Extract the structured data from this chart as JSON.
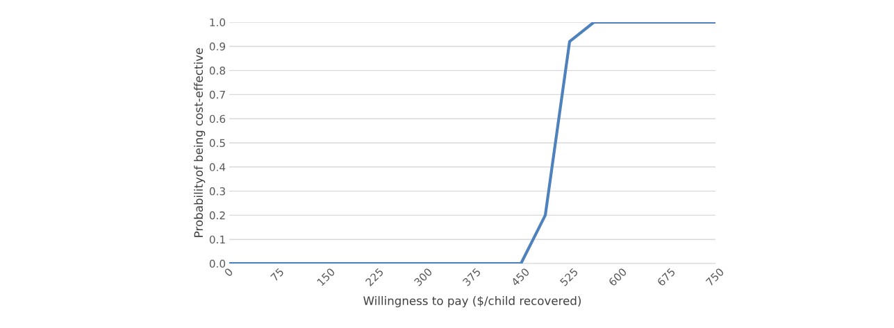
{
  "chart_data": {
    "type": "line",
    "xlabel": "Willingness to pay ($/child recovered)",
    "ylabel": "Probabilityof being cost-effective",
    "x": [
      0,
      37.5,
      75,
      112.5,
      150,
      187.5,
      225,
      262.5,
      300,
      337.5,
      375,
      412.5,
      450,
      487.5,
      525,
      562.5,
      600,
      637.5,
      675,
      712.5,
      750
    ],
    "series": [
      {
        "color": "#4f81bd",
        "values": [
          0,
          0,
          0,
          0,
          0,
          0,
          0,
          0,
          0,
          0,
          0,
          0,
          0,
          0.2,
          0.92,
          1.0,
          1.0,
          1.0,
          1.0,
          1.0,
          1.0
        ]
      }
    ],
    "xlim": [
      0,
      750
    ],
    "xticks": [
      0,
      75,
      150,
      225,
      300,
      375,
      450,
      525,
      600,
      675,
      750
    ],
    "ylim": [
      0,
      1
    ],
    "yticks": [
      {
        "value": 0,
        "label": "0.0"
      },
      0.1,
      0.2,
      0.3,
      0.4,
      0.5,
      0.6,
      0.7,
      0.8,
      0.9,
      {
        "value": 1,
        "label": "1.0"
      }
    ],
    "grid": "y",
    "marker": "none",
    "line_style": "solid",
    "legend": false
  }
}
